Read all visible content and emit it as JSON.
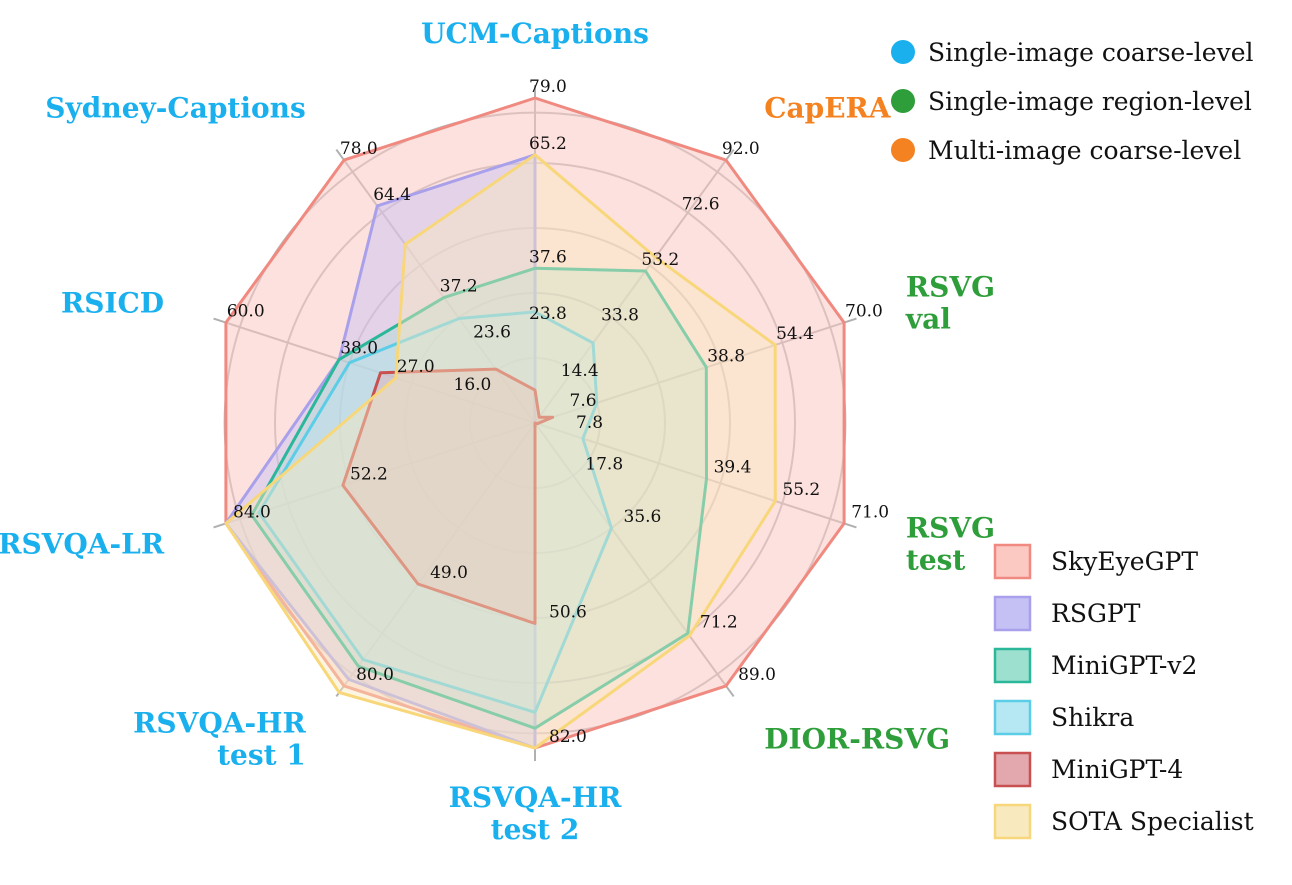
{
  "chart_data": {
    "type": "radar",
    "axes": [
      {
        "label_lines": [
          "UCM-Captions"
        ],
        "group": "coarse",
        "ticks": [
          "23.8",
          "37.6",
          "65.2",
          "79.0"
        ]
      },
      {
        "label_lines": [
          "CapERA"
        ],
        "group": "multi",
        "ticks": [
          "14.4",
          "33.8",
          "53.2",
          "72.6",
          "92.0"
        ]
      },
      {
        "label_lines": [
          "RSVG",
          "val"
        ],
        "group": "region",
        "ticks": [
          "7.6",
          "38.8",
          "54.4",
          "70.0"
        ]
      },
      {
        "label_lines": [
          "RSVG",
          "test"
        ],
        "group": "region",
        "ticks": [
          "7.8",
          "39.4",
          "55.2",
          "71.0"
        ]
      },
      {
        "label_lines": [
          "DIOR-RSVG"
        ],
        "group": "region",
        "ticks": [
          "17.8",
          "35.6",
          "71.2",
          "89.0"
        ]
      },
      {
        "label_lines": [
          "RSVQA-HR",
          "test 2"
        ],
        "group": "coarse",
        "ticks": [
          "50.6",
          "82.0"
        ]
      },
      {
        "label_lines": [
          "RSVQA-HR",
          "test 1"
        ],
        "group": "coarse",
        "ticks": [
          "49.0",
          "80.0"
        ]
      },
      {
        "label_lines": [
          "RSVQA-LR"
        ],
        "group": "coarse",
        "ticks": [
          "52.2",
          "84.0"
        ]
      },
      {
        "label_lines": [
          "RSICD"
        ],
        "group": "coarse",
        "ticks": [
          "16.0",
          "27.0",
          "38.0",
          "60.0"
        ]
      },
      {
        "label_lines": [
          "Sydney-Captions"
        ],
        "group": "coarse",
        "ticks": [
          "23.6",
          "37.2",
          "64.4",
          "78.0"
        ]
      }
    ],
    "axis_max": [
      79.0,
      92.0,
      70.0,
      71.0,
      89.0,
      82.0,
      80.0,
      84.0,
      60.0,
      78.0
    ],
    "series": [
      {
        "name": "SkyEyeGPT",
        "color": "#f08a80",
        "fill": "#fcc8c2",
        "fill_opacity": 0.55,
        "values": [
          79.0,
          92.0,
          70.0,
          71.0,
          89.0,
          82.0,
          80.0,
          84.0,
          60.0,
          78.0
        ]
      },
      {
        "name": "RSGPT",
        "color": "#a9a0ec",
        "fill": "#c6c1f4",
        "fill_opacity": 0.45,
        "values": [
          65.2,
          0,
          0,
          0,
          0,
          82.0,
          78.0,
          84.0,
          38.0,
          64.4
        ]
      },
      {
        "name": "MiniGPT-v2",
        "color": "#2ab79a",
        "fill": "#9ee0cf",
        "fill_opacity": 0.35,
        "values": [
          37.6,
          53.2,
          38.8,
          39.4,
          71.2,
          77.0,
          74.0,
          77.0,
          38.0,
          37.2
        ]
      },
      {
        "name": "Shikra",
        "color": "#5ccde6",
        "fill": "#b6e8f3",
        "fill_opacity": 0.35,
        "values": [
          27.0,
          28.0,
          14.0,
          11.0,
          35.6,
          73.0,
          72.0,
          75.0,
          36.0,
          31.0
        ]
      },
      {
        "name": "MiniGPT-4",
        "color": "#c85050",
        "fill": "#e3a8ae",
        "fill_opacity": 0.4,
        "values": [
          8.0,
          2.0,
          4.0,
          0.5,
          0,
          50.6,
          49.0,
          52.2,
          30.0,
          16.0
        ]
      },
      {
        "name": "SOTA  Specialist",
        "color": "#f8d77a",
        "fill": "#f8e9bf",
        "fill_opacity": 0.45,
        "values": [
          65.2,
          58.0,
          54.4,
          55.2,
          72.0,
          82.0,
          82.0,
          84.0,
          27.0,
          53.0
        ]
      }
    ],
    "groups": [
      {
        "key": "coarse",
        "name": "Single-image coarse-level",
        "color": "#1ab0ee"
      },
      {
        "key": "region",
        "name": "Single-image region-level",
        "color": "#2e9e3a"
      },
      {
        "key": "multi",
        "name": "Multi-image coarse-level",
        "color": "#f58220"
      }
    ]
  }
}
